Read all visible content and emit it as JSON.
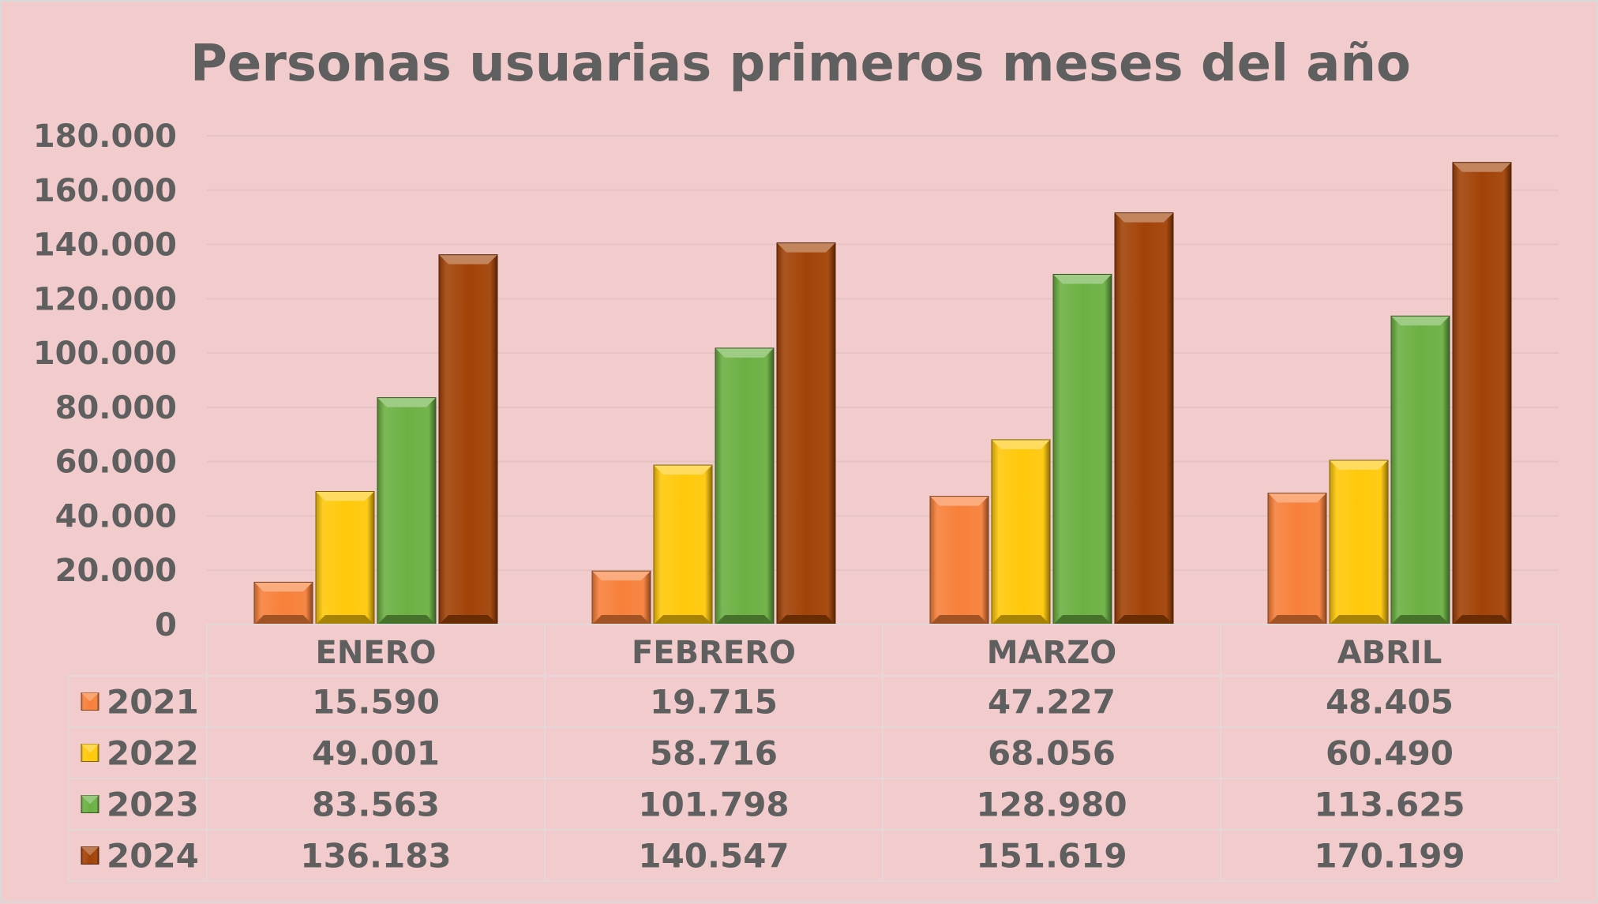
{
  "chart_data": {
    "type": "bar",
    "title": "Personas usuarias primeros meses del año",
    "categories": [
      "ENERO",
      "FEBRERO",
      "MARZO",
      "ABRIL"
    ],
    "series": [
      {
        "name": "2021",
        "color": "#f7803a",
        "values": [
          15590,
          19715,
          47227,
          48405
        ],
        "labels": [
          "15.590",
          "19.715",
          "47.227",
          "48.405"
        ]
      },
      {
        "name": "2022",
        "color": "#ffc80a",
        "values": [
          49001,
          58716,
          68056,
          60490
        ],
        "labels": [
          "49.001",
          "58.716",
          "68.056",
          "60.490"
        ]
      },
      {
        "name": "2023",
        "color": "#6cb043",
        "values": [
          83563,
          101798,
          128980,
          113625
        ],
        "labels": [
          "83.563",
          "101.798",
          "128.980",
          "113.625"
        ]
      },
      {
        "name": "2024",
        "color": "#a24308",
        "values": [
          136183,
          140547,
          151619,
          170199
        ],
        "labels": [
          "136.183",
          "140.547",
          "151.619",
          "170.199"
        ]
      }
    ],
    "ylim": [
      0,
      180000
    ],
    "yticks": [
      0,
      20000,
      40000,
      60000,
      80000,
      100000,
      120000,
      140000,
      160000,
      180000
    ],
    "ytick_labels": [
      "0",
      "20.000",
      "40.000",
      "60.000",
      "80.000",
      "100.000",
      "120.000",
      "140.000",
      "160.000",
      "180.000"
    ],
    "grid": true,
    "legend": "data-table"
  }
}
